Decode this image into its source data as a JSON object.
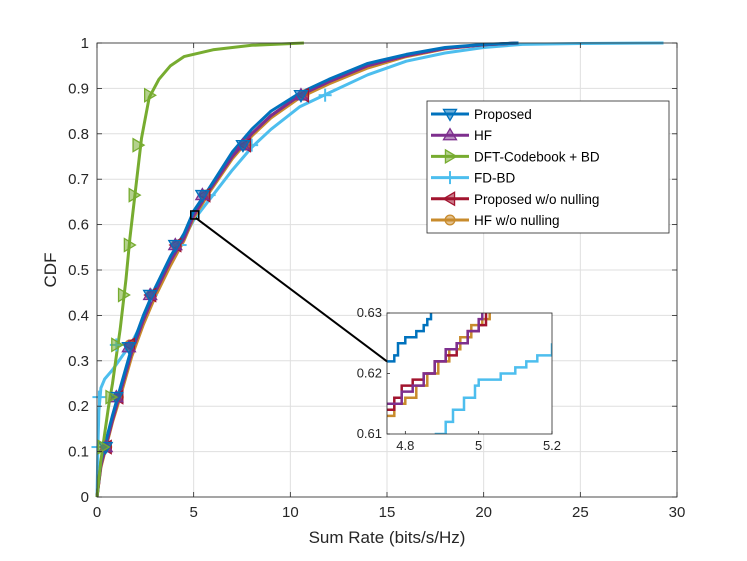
{
  "chart_data": {
    "type": "line",
    "title": "",
    "xlabel": "Sum Rate (bits/s/Hz)",
    "ylabel": "CDF",
    "xlim": [
      0,
      30
    ],
    "ylim": [
      0,
      1
    ],
    "grid": true,
    "legend_position": "right",
    "xticks": [
      "0",
      "5",
      "10",
      "15",
      "20",
      "25",
      "30"
    ],
    "yticks": [
      "0",
      "0.1",
      "0.2",
      "0.3",
      "0.4",
      "0.5",
      "0.6",
      "0.7",
      "0.8",
      "0.9",
      "1"
    ],
    "series": [
      {
        "name": "Proposed",
        "color": "#0072BD",
        "marker": "triangle-down",
        "points": [
          [
            0,
            0
          ],
          [
            0.2,
            0.08
          ],
          [
            0.5,
            0.13
          ],
          [
            0.8,
            0.18
          ],
          [
            1.2,
            0.24
          ],
          [
            1.8,
            0.33
          ],
          [
            2.4,
            0.4
          ],
          [
            3.0,
            0.46
          ],
          [
            3.8,
            0.53
          ],
          [
            4.5,
            0.58
          ],
          [
            5.0,
            0.63
          ],
          [
            5.8,
            0.68
          ],
          [
            7.0,
            0.76
          ],
          [
            8.0,
            0.81
          ],
          [
            9.0,
            0.85
          ],
          [
            10.5,
            0.89
          ],
          [
            12,
            0.92
          ],
          [
            14,
            0.955
          ],
          [
            16,
            0.975
          ],
          [
            18,
            0.99
          ],
          [
            20,
            0.997
          ],
          [
            21.8,
            1.0
          ]
        ]
      },
      {
        "name": "HF",
        "color": "#7E2F8E",
        "marker": "triangle-up",
        "points": [
          [
            0,
            0
          ],
          [
            0.2,
            0.07
          ],
          [
            0.5,
            0.12
          ],
          [
            0.8,
            0.17
          ],
          [
            1.2,
            0.23
          ],
          [
            1.8,
            0.32
          ],
          [
            2.4,
            0.39
          ],
          [
            3.0,
            0.45
          ],
          [
            3.8,
            0.52
          ],
          [
            4.5,
            0.57
          ],
          [
            5.0,
            0.62
          ],
          [
            5.8,
            0.675
          ],
          [
            7.0,
            0.75
          ],
          [
            8.0,
            0.8
          ],
          [
            9.0,
            0.84
          ],
          [
            10.5,
            0.885
          ],
          [
            12,
            0.915
          ],
          [
            14,
            0.95
          ],
          [
            16,
            0.972
          ],
          [
            18,
            0.988
          ],
          [
            20,
            0.996
          ],
          [
            21.8,
            1.0
          ]
        ]
      },
      {
        "name": "DFT-Codebook + BD",
        "color": "#77AC30",
        "marker": "triangle-right",
        "points": [
          [
            0,
            0
          ],
          [
            0.2,
            0.08
          ],
          [
            0.4,
            0.14
          ],
          [
            0.6,
            0.2
          ],
          [
            0.8,
            0.25
          ],
          [
            1.0,
            0.31
          ],
          [
            1.2,
            0.37
          ],
          [
            1.5,
            0.48
          ],
          [
            1.7,
            0.57
          ],
          [
            2.0,
            0.68
          ],
          [
            2.3,
            0.79
          ],
          [
            2.7,
            0.88
          ],
          [
            3.2,
            0.92
          ],
          [
            3.8,
            0.95
          ],
          [
            4.5,
            0.97
          ],
          [
            6.0,
            0.985
          ],
          [
            8.0,
            0.995
          ],
          [
            10.7,
            1.0
          ]
        ]
      },
      {
        "name": "FD-BD",
        "color": "#4DBEEE",
        "marker": "plus",
        "points": [
          [
            0,
            0
          ],
          [
            0.05,
            0.12
          ],
          [
            0.1,
            0.19
          ],
          [
            0.2,
            0.24
          ],
          [
            0.4,
            0.26
          ],
          [
            0.8,
            0.28
          ],
          [
            1.3,
            0.31
          ],
          [
            1.8,
            0.34
          ],
          [
            2.4,
            0.39
          ],
          [
            3.0,
            0.45
          ],
          [
            3.8,
            0.52
          ],
          [
            4.5,
            0.57
          ],
          [
            5.0,
            0.61
          ],
          [
            6.0,
            0.665
          ],
          [
            7.0,
            0.72
          ],
          [
            8.0,
            0.77
          ],
          [
            9.0,
            0.81
          ],
          [
            10.5,
            0.86
          ],
          [
            12,
            0.89
          ],
          [
            14,
            0.93
          ],
          [
            16,
            0.96
          ],
          [
            18,
            0.978
          ],
          [
            20,
            0.99
          ],
          [
            22,
            0.997
          ],
          [
            25,
            0.999
          ],
          [
            29.3,
            1.0
          ]
        ]
      },
      {
        "name": "Proposed w/o nulling",
        "color": "#A2142F",
        "marker": "triangle-left",
        "points": [
          [
            0,
            0
          ],
          [
            0.2,
            0.07
          ],
          [
            0.5,
            0.12
          ],
          [
            0.8,
            0.17
          ],
          [
            1.2,
            0.23
          ],
          [
            1.8,
            0.32
          ],
          [
            2.4,
            0.39
          ],
          [
            3.0,
            0.45
          ],
          [
            3.8,
            0.52
          ],
          [
            4.5,
            0.575
          ],
          [
            5.0,
            0.62
          ],
          [
            5.8,
            0.675
          ],
          [
            7.0,
            0.75
          ],
          [
            8.0,
            0.8
          ],
          [
            9.0,
            0.84
          ],
          [
            10.5,
            0.885
          ],
          [
            12,
            0.915
          ],
          [
            14,
            0.95
          ],
          [
            16,
            0.972
          ],
          [
            18,
            0.988
          ],
          [
            20,
            0.996
          ],
          [
            21.8,
            1.0
          ]
        ]
      },
      {
        "name": "HF w/o nulling",
        "color": "#C88B2C",
        "marker": "circle",
        "points": [
          [
            0,
            0
          ],
          [
            0.2,
            0.065
          ],
          [
            0.5,
            0.115
          ],
          [
            0.8,
            0.165
          ],
          [
            1.2,
            0.22
          ],
          [
            1.8,
            0.31
          ],
          [
            2.4,
            0.38
          ],
          [
            3.0,
            0.44
          ],
          [
            3.8,
            0.51
          ],
          [
            4.5,
            0.565
          ],
          [
            5.0,
            0.615
          ],
          [
            5.8,
            0.67
          ],
          [
            7.0,
            0.745
          ],
          [
            8.0,
            0.795
          ],
          [
            9.0,
            0.835
          ],
          [
            10.5,
            0.88
          ],
          [
            12,
            0.91
          ],
          [
            14,
            0.945
          ],
          [
            16,
            0.97
          ],
          [
            18,
            0.987
          ],
          [
            20,
            0.996
          ],
          [
            21.8,
            1.0
          ]
        ]
      }
    ],
    "markers": {
      "Proposed": [
        [
          0.45,
          0.11
        ],
        [
          1.0,
          0.22
        ],
        [
          1.65,
          0.33
        ],
        [
          2.75,
          0.445
        ],
        [
          4.05,
          0.555
        ],
        [
          5.45,
          0.665
        ],
        [
          7.55,
          0.775
        ],
        [
          10.55,
          0.885
        ]
      ],
      "HF": [
        [
          0.45,
          0.11
        ],
        [
          1.0,
          0.22
        ],
        [
          1.65,
          0.33
        ],
        [
          2.75,
          0.445
        ],
        [
          4.05,
          0.555
        ],
        [
          5.45,
          0.665
        ],
        [
          7.55,
          0.775
        ],
        [
          10.55,
          0.885
        ]
      ],
      "DFT-Codebook + BD": [
        [
          0.3,
          0.11
        ],
        [
          0.7,
          0.22
        ],
        [
          1.0,
          0.335
        ],
        [
          1.35,
          0.445
        ],
        [
          1.65,
          0.555
        ],
        [
          1.9,
          0.665
        ],
        [
          2.1,
          0.775
        ],
        [
          2.7,
          0.885
        ]
      ],
      "FD-BD": [
        [
          0.05,
          0.11
        ],
        [
          0.1,
          0.22
        ],
        [
          1.0,
          0.335
        ],
        [
          2.8,
          0.445
        ],
        [
          4.3,
          0.555
        ],
        [
          5.8,
          0.665
        ],
        [
          8.0,
          0.775
        ],
        [
          11.8,
          0.885
        ]
      ],
      "Proposed w/o nulling": [
        [
          0.5,
          0.11
        ],
        [
          1.1,
          0.22
        ],
        [
          1.7,
          0.335
        ],
        [
          2.8,
          0.445
        ],
        [
          4.1,
          0.555
        ],
        [
          5.6,
          0.665
        ],
        [
          7.7,
          0.775
        ],
        [
          10.7,
          0.885
        ]
      ],
      "HF w/o nulling": [
        [
          0.5,
          0.11
        ],
        [
          1.1,
          0.22
        ],
        [
          1.7,
          0.335
        ],
        [
          2.8,
          0.445
        ],
        [
          4.1,
          0.555
        ],
        [
          5.6,
          0.665
        ],
        [
          7.7,
          0.775
        ],
        [
          10.7,
          0.885
        ]
      ]
    },
    "zoom_box": {
      "x": [
        4.85,
        5.15
      ],
      "y": [
        0.615,
        0.63
      ],
      "target_point": [
        5.0,
        0.622
      ]
    },
    "inset": {
      "xlim": [
        4.75,
        5.2
      ],
      "ylim": [
        0.61,
        0.63
      ],
      "xticks": [
        "4.8",
        "5",
        "5.2"
      ],
      "xtick_values": [
        4.8,
        5.0,
        5.2
      ],
      "yticks": [
        "0.61",
        "0.62",
        "0.63"
      ],
      "ytick_values": [
        0.61,
        0.62,
        0.63
      ],
      "series": [
        {
          "name": "Proposed",
          "points": [
            [
              4.75,
              0.622
            ],
            [
              4.77,
              0.623
            ],
            [
              4.78,
              0.625
            ],
            [
              4.8,
              0.626
            ],
            [
              4.82,
              0.626
            ],
            [
              4.83,
              0.627
            ],
            [
              4.85,
              0.628
            ],
            [
              4.86,
              0.629
            ],
            [
              4.87,
              0.63
            ]
          ]
        },
        {
          "name": "HF",
          "points": [
            [
              4.75,
              0.615
            ],
            [
              4.79,
              0.617
            ],
            [
              4.82,
              0.618
            ],
            [
              4.85,
              0.62
            ],
            [
              4.88,
              0.622
            ],
            [
              4.91,
              0.624
            ],
            [
              4.94,
              0.625
            ],
            [
              4.97,
              0.627
            ],
            [
              5.0,
              0.629
            ],
            [
              5.01,
              0.63
            ]
          ]
        },
        {
          "name": "FD-BD",
          "points": [
            [
              4.88,
              0.61
            ],
            [
              4.91,
              0.612
            ],
            [
              4.93,
              0.614
            ],
            [
              4.96,
              0.616
            ],
            [
              4.99,
              0.618
            ],
            [
              5.0,
              0.619
            ],
            [
              5.06,
              0.62
            ],
            [
              5.1,
              0.621
            ],
            [
              5.13,
              0.622
            ],
            [
              5.16,
              0.623
            ],
            [
              5.2,
              0.625
            ]
          ]
        },
        {
          "name": "Proposed w/o nulling",
          "points": [
            [
              4.75,
              0.614
            ],
            [
              4.77,
              0.616
            ],
            [
              4.79,
              0.618
            ],
            [
              4.82,
              0.619
            ],
            [
              4.85,
              0.62
            ],
            [
              4.88,
              0.622
            ],
            [
              4.91,
              0.623
            ],
            [
              4.94,
              0.625
            ],
            [
              4.97,
              0.627
            ],
            [
              5.0,
              0.628
            ],
            [
              5.02,
              0.63
            ]
          ]
        },
        {
          "name": "HF w/o nulling",
          "points": [
            [
              4.75,
              0.613
            ],
            [
              4.77,
              0.615
            ],
            [
              4.8,
              0.616
            ],
            [
              4.83,
              0.618
            ],
            [
              4.86,
              0.62
            ],
            [
              4.89,
              0.622
            ],
            [
              4.92,
              0.624
            ],
            [
              4.95,
              0.626
            ],
            [
              4.98,
              0.628
            ],
            [
              5.01,
              0.629
            ],
            [
              5.03,
              0.63
            ]
          ]
        }
      ]
    }
  }
}
